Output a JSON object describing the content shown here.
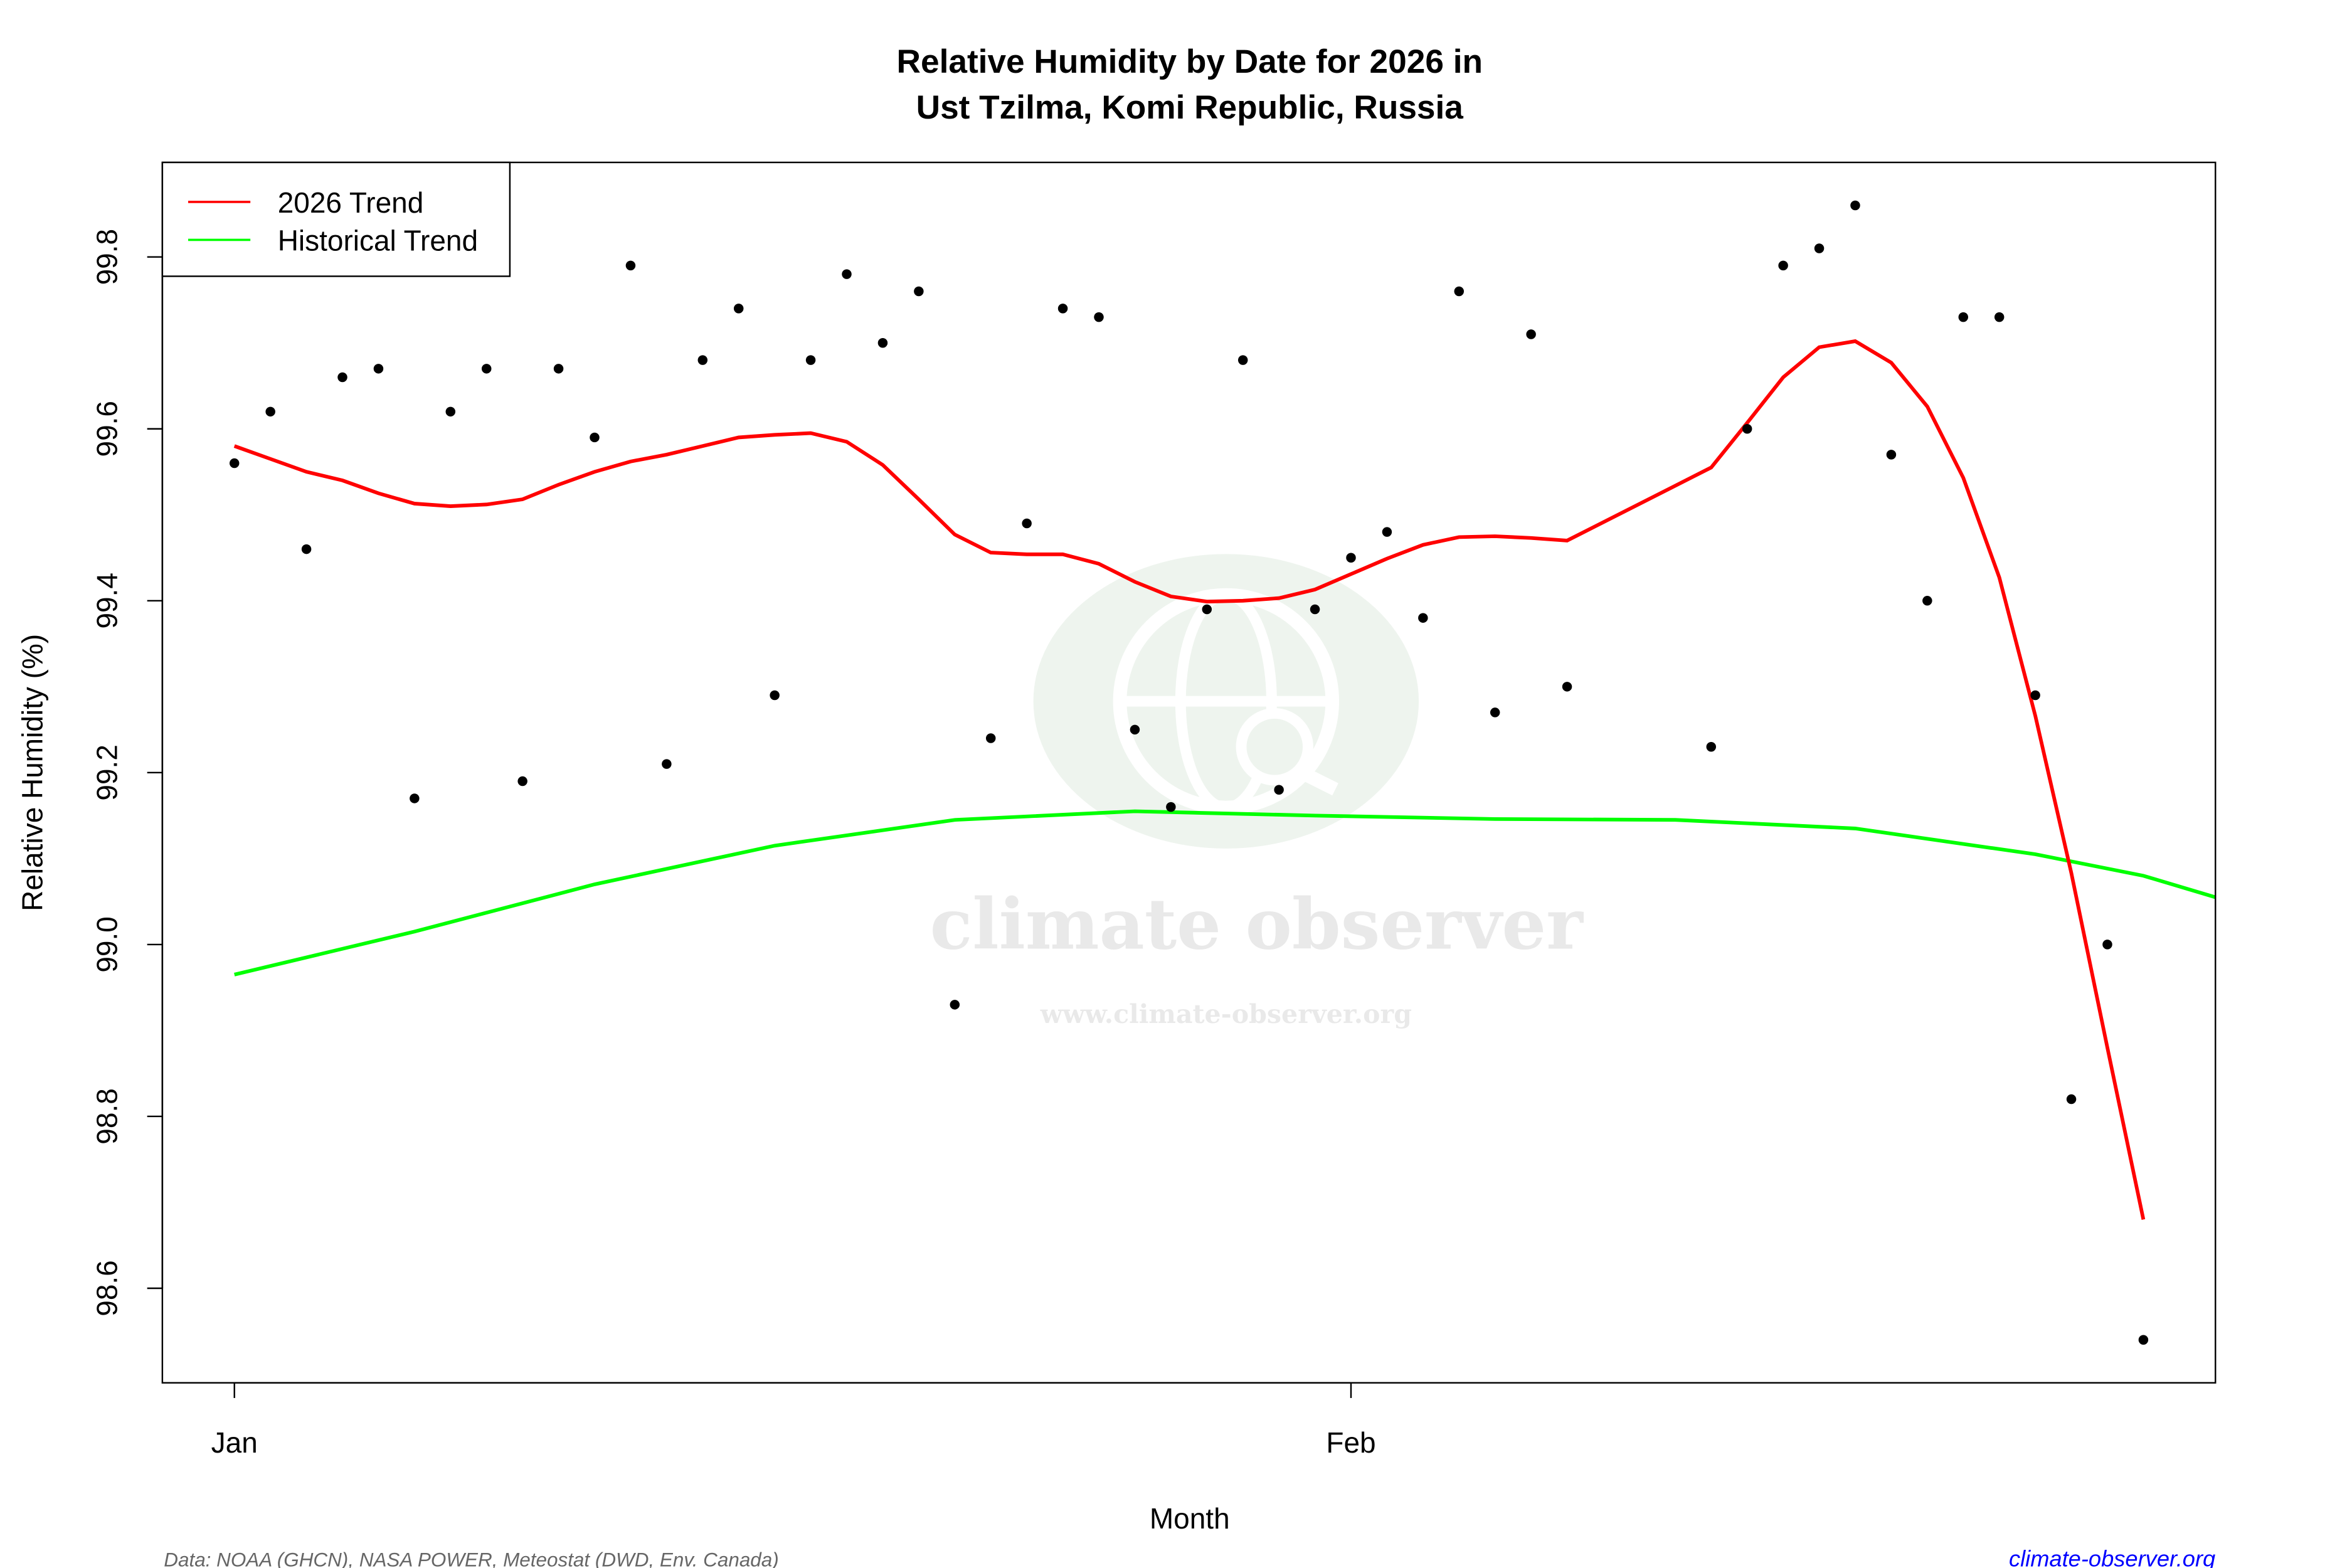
{
  "chart_data": {
    "type": "scatter",
    "title": "Relative Humidity by Date for 2026 in",
    "subtitle": "Ust Tzilma, Komi Republic, Russia",
    "xlabel": "Month",
    "ylabel": "Relative Humidity (%)",
    "x_ticks": [
      {
        "label": "Jan",
        "date": "2026-01-01"
      },
      {
        "label": "Feb",
        "date": "2026-02-01"
      }
    ],
    "y_ticks": [
      "98.6",
      "98.8",
      "99.0",
      "99.2",
      "99.4",
      "99.6",
      "99.8"
    ],
    "xlim": [
      "2025-12-30",
      "2026-02-25"
    ],
    "ylim": [
      98.49,
      99.91
    ],
    "grid": false,
    "legend_placement": "top-left",
    "points": {
      "color": "#000000",
      "dates": [
        "2026-01-01",
        "2026-01-02",
        "2026-01-03",
        "2026-01-04",
        "2026-01-05",
        "2026-01-06",
        "2026-01-07",
        "2026-01-08",
        "2026-01-09",
        "2026-01-10",
        "2026-01-11",
        "2026-01-12",
        "2026-01-13",
        "2026-01-14",
        "2026-01-15",
        "2026-01-16",
        "2026-01-17",
        "2026-01-18",
        "2026-01-19",
        "2026-01-20",
        "2026-01-21",
        "2026-01-22",
        "2026-01-23",
        "2026-01-24",
        "2026-01-25",
        "2026-01-26",
        "2026-01-27",
        "2026-01-28",
        "2026-01-29",
        "2026-01-30",
        "2026-01-31",
        "2026-02-01",
        "2026-02-02",
        "2026-02-03",
        "2026-02-04",
        "2026-02-05",
        "2026-02-06",
        "2026-02-07",
        "2026-02-11",
        "2026-02-12",
        "2026-02-13",
        "2026-02-14",
        "2026-02-15",
        "2026-02-16",
        "2026-02-17",
        "2026-02-18",
        "2026-02-19",
        "2026-02-20",
        "2026-02-21",
        "2026-02-22",
        "2026-02-23"
      ],
      "values": [
        99.56,
        99.62,
        99.46,
        99.66,
        99.67,
        99.17,
        99.62,
        99.67,
        99.19,
        99.67,
        99.59,
        99.79,
        99.21,
        99.68,
        99.74,
        99.29,
        99.68,
        99.78,
        99.7,
        99.76,
        98.93,
        99.24,
        99.49,
        99.74,
        99.73,
        99.25,
        99.16,
        99.39,
        99.68,
        99.18,
        99.39,
        99.45,
        99.48,
        99.38,
        99.76,
        99.27,
        99.71,
        99.3,
        99.23,
        99.6,
        99.79,
        99.81,
        99.86,
        99.57,
        99.4,
        99.73,
        99.73,
        99.29,
        98.82,
        99.0,
        98.54
      ]
    },
    "series": [
      {
        "name": "2026 Trend",
        "color": "#ff0000",
        "dates": [
          "2026-01-01",
          "2026-01-02",
          "2026-01-03",
          "2026-01-04",
          "2026-01-05",
          "2026-01-06",
          "2026-01-07",
          "2026-01-08",
          "2026-01-09",
          "2026-01-10",
          "2026-01-11",
          "2026-01-12",
          "2026-01-13",
          "2026-01-14",
          "2026-01-15",
          "2026-01-16",
          "2026-01-17",
          "2026-01-18",
          "2026-01-19",
          "2026-01-20",
          "2026-01-21",
          "2026-01-22",
          "2026-01-23",
          "2026-01-24",
          "2026-01-25",
          "2026-01-26",
          "2026-01-27",
          "2026-01-28",
          "2026-01-29",
          "2026-01-30",
          "2026-01-31",
          "2026-02-01",
          "2026-02-02",
          "2026-02-03",
          "2026-02-04",
          "2026-02-05",
          "2026-02-06",
          "2026-02-07",
          "2026-02-11",
          "2026-02-12",
          "2026-02-13",
          "2026-02-14",
          "2026-02-15",
          "2026-02-16",
          "2026-02-17",
          "2026-02-18",
          "2026-02-19",
          "2026-02-20",
          "2026-02-21",
          "2026-02-22",
          "2026-02-23"
        ],
        "values": [
          99.58,
          99.565,
          99.55,
          99.54,
          99.525,
          99.513,
          99.51,
          99.512,
          99.518,
          99.535,
          99.55,
          99.562,
          99.57,
          99.58,
          99.59,
          99.593,
          99.595,
          99.585,
          99.558,
          99.518,
          99.477,
          99.456,
          99.454,
          99.454,
          99.443,
          99.422,
          99.405,
          99.399,
          99.4,
          99.403,
          99.413,
          99.431,
          99.449,
          99.465,
          99.474,
          99.475,
          99.473,
          99.47,
          99.555,
          99.607,
          99.66,
          99.695,
          99.702,
          99.677,
          99.626,
          99.543,
          99.427,
          99.266,
          99.083,
          98.88,
          98.68
        ]
      },
      {
        "name": "Historical Trend",
        "color": "#00ff00",
        "dates": [
          "2026-01-01",
          "2026-01-06",
          "2026-01-11",
          "2026-01-16",
          "2026-01-21",
          "2026-01-26",
          "2026-01-31",
          "2026-02-05",
          "2026-02-10",
          "2026-02-15",
          "2026-02-20",
          "2026-02-23",
          "2026-02-25"
        ],
        "values": [
          98.965,
          99.015,
          99.07,
          99.115,
          99.145,
          99.155,
          99.15,
          99.146,
          99.145,
          99.135,
          99.105,
          99.08,
          99.055
        ]
      }
    ]
  },
  "watermark": {
    "brand": "climate observer",
    "url": "www.climate-observer.org"
  },
  "footer": {
    "source": "Data: NOAA (GHCN), NASA POWER, Meteostat (DWD, Env. Canada)",
    "link": "climate-observer.org",
    "link_color": "#0000ff"
  }
}
